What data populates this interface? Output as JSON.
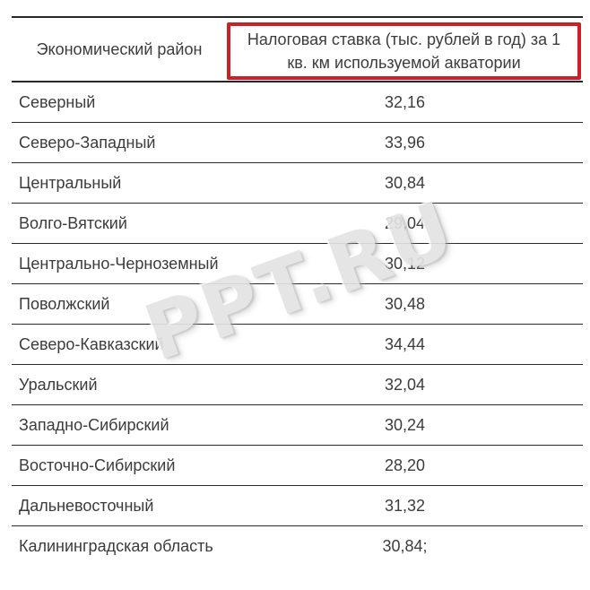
{
  "table": {
    "headers": {
      "region": "Экономический район",
      "rate": "Налоговая ставка (тыс. рублей в год) за 1 кв. км используемой акватории"
    },
    "rows": [
      {
        "region": "Северный",
        "rate": "32,16"
      },
      {
        "region": "Северо-Западный",
        "rate": "33,96"
      },
      {
        "region": "Центральный",
        "rate": "30,84"
      },
      {
        "region": "Волго-Вятский",
        "rate": "29,04"
      },
      {
        "region": "Центрально-Черноземный",
        "rate": "30,12"
      },
      {
        "region": "Поволжский",
        "rate": "30,48"
      },
      {
        "region": "Северо-Кавказский",
        "rate": "34,44"
      },
      {
        "region": "Уральский",
        "rate": "32,04"
      },
      {
        "region": "Западно-Сибирский",
        "rate": "30,24"
      },
      {
        "region": "Восточно-Сибирский",
        "rate": "28,20"
      },
      {
        "region": "Дальневосточный",
        "rate": "31,32"
      },
      {
        "region": "Калининградская область",
        "rate": "30,84;"
      }
    ]
  },
  "watermark": {
    "text": "PPT.RU"
  },
  "colors": {
    "highlight_border": "#cb2026",
    "text": "#3c3c3c",
    "line": "#2a2a2a",
    "watermark": "#e3e3e3",
    "background": "#ffffff"
  }
}
